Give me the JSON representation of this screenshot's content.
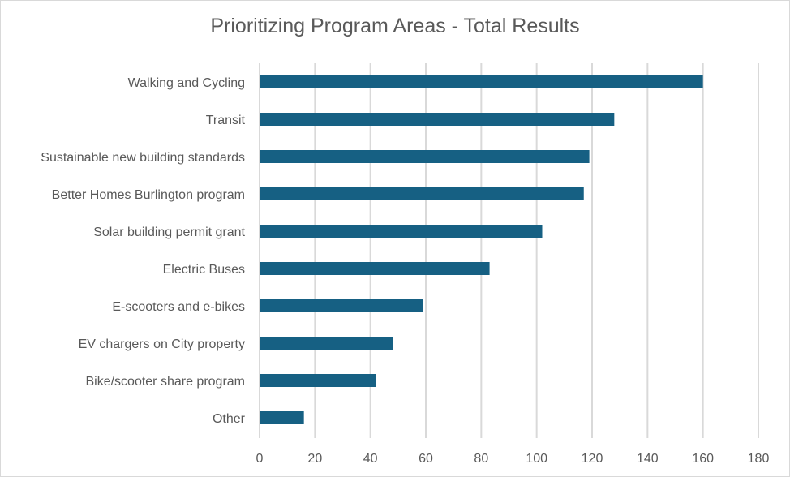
{
  "chart_data": {
    "type": "bar",
    "orientation": "horizontal",
    "title": "Prioritizing Program Areas - Total Results",
    "categories": [
      "Walking and Cycling",
      "Transit",
      "Sustainable new building standards",
      "Better Homes Burlington program",
      "Solar building permit grant",
      "Electric Buses",
      "E-scooters and e-bikes",
      "EV chargers on City property",
      "Bike/scooter share program",
      "Other"
    ],
    "values": [
      160,
      128,
      119,
      117,
      102,
      83,
      59,
      48,
      42,
      16
    ],
    "xlim": [
      0,
      180
    ],
    "xticks": [
      "0",
      "20",
      "40",
      "60",
      "80",
      "100",
      "120",
      "140",
      "160",
      "180"
    ],
    "xlabel": "",
    "ylabel": "",
    "grid": "vertical",
    "legend": "none",
    "bar_color": "#166083",
    "grid_color": "#d9d9d9"
  }
}
